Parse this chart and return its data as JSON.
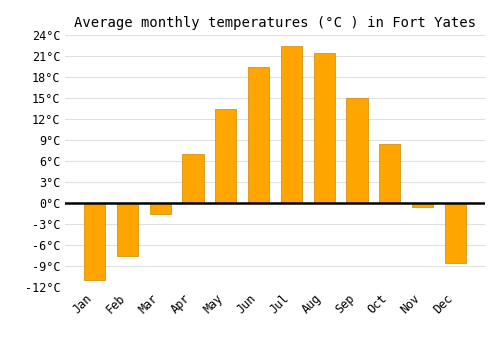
{
  "months": [
    "Jan",
    "Feb",
    "Mar",
    "Apr",
    "May",
    "Jun",
    "Jul",
    "Aug",
    "Sep",
    "Oct",
    "Nov",
    "Dec"
  ],
  "values": [
    -11,
    -7.5,
    -1.5,
    7,
    13.5,
    19.5,
    22.5,
    21.5,
    15,
    8.5,
    -0.5,
    -8.5
  ],
  "bar_color": "#FFA500",
  "bar_edge_color": "#CC8800",
  "title": "Average monthly temperatures (°C ) in Fort Yates",
  "ylim": [
    -12,
    24
  ],
  "yticks": [
    -12,
    -9,
    -6,
    -3,
    0,
    3,
    6,
    9,
    12,
    15,
    18,
    21,
    24
  ],
  "ytick_labels": [
    "-12°C",
    "-9°C",
    "-6°C",
    "-3°C",
    "0°C",
    "3°C",
    "6°C",
    "9°C",
    "12°C",
    "15°C",
    "18°C",
    "21°C",
    "24°C"
  ],
  "background_color": "#ffffff",
  "grid_color": "#e0e0e0",
  "title_fontsize": 10,
  "tick_fontsize": 8.5
}
